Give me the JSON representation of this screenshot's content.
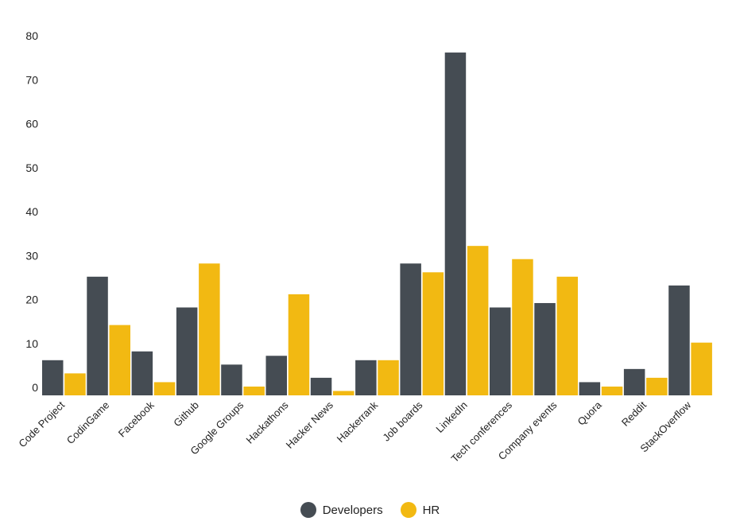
{
  "chart_data": {
    "type": "bar",
    "categories": [
      "Code Project",
      "CodinGame",
      "Facebook",
      "Github",
      "Google Groups",
      "Hackathons",
      "Hacker News",
      "Hackerrank",
      "Job boards",
      "LinkedIn",
      "Tech conferences",
      "Company events",
      "Quora",
      "Reddit",
      "StackOverflow"
    ],
    "series": [
      {
        "name": "Developers",
        "color": "#454c53",
        "values": [
          8,
          27,
          10,
          20,
          7,
          9,
          4,
          8,
          30,
          78,
          20,
          21,
          3,
          6,
          25
        ]
      },
      {
        "name": "HR",
        "color": "#f2b912",
        "values": [
          5,
          16,
          3,
          30,
          2,
          23,
          1,
          8,
          28,
          34,
          31,
          27,
          2,
          4,
          12
        ]
      }
    ],
    "yticks": [
      0,
      10,
      20,
      30,
      40,
      50,
      60,
      70,
      80
    ],
    "ylim": [
      0,
      80
    ],
    "grid": false,
    "legend_position": "bottom"
  }
}
